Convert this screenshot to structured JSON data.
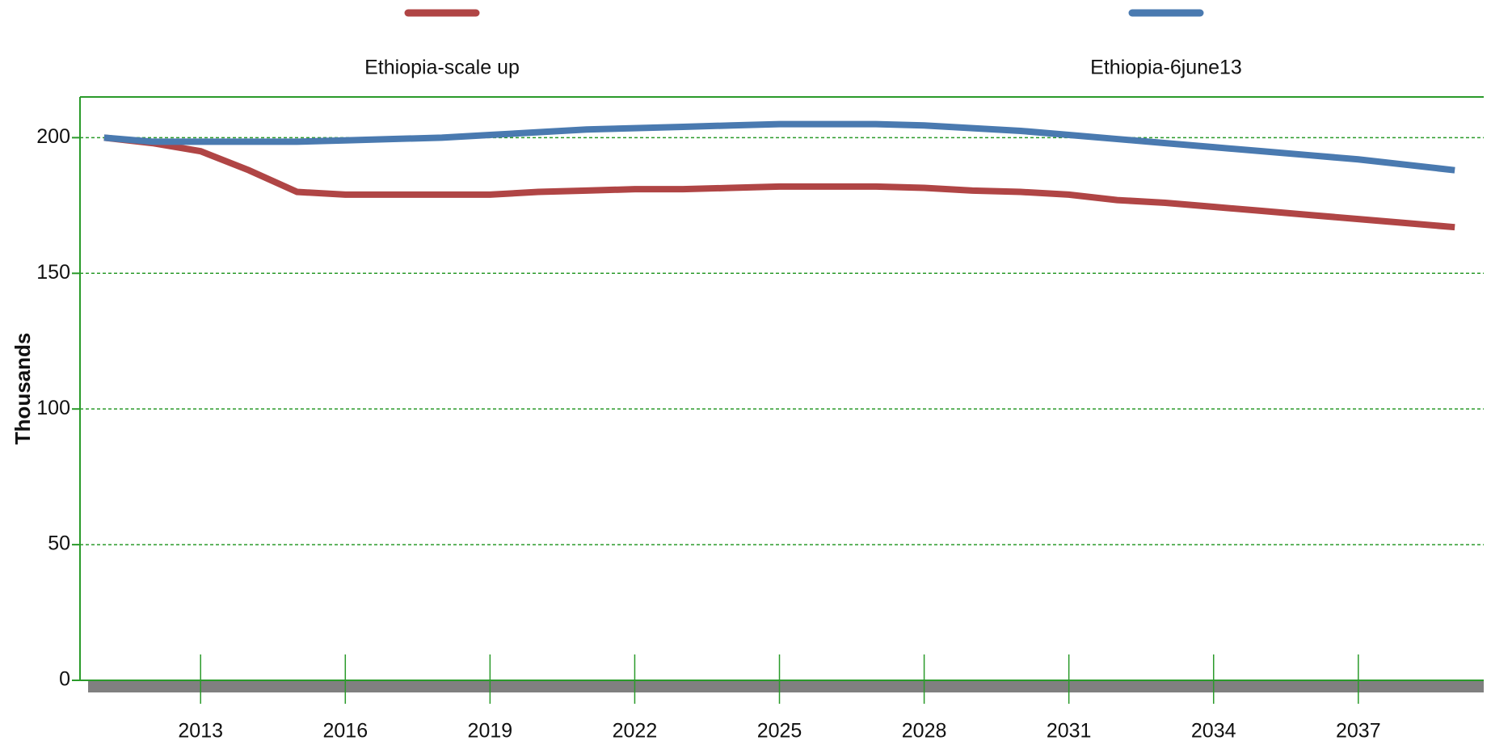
{
  "chart_data": {
    "type": "line",
    "y_label": "Thousands",
    "x": [
      2011,
      2012,
      2013,
      2014,
      2015,
      2016,
      2017,
      2018,
      2019,
      2020,
      2021,
      2022,
      2023,
      2024,
      2025,
      2026,
      2027,
      2028,
      2029,
      2030,
      2031,
      2032,
      2033,
      2034,
      2035,
      2036,
      2037,
      2038,
      2039
    ],
    "series": [
      {
        "name": "Ethiopia-scale up",
        "color": "#b04545",
        "values": [
          200,
          198,
          195,
          188,
          180,
          179,
          179,
          179,
          179,
          180,
          180.5,
          181,
          181,
          181.5,
          182,
          182,
          182,
          181.5,
          180.5,
          180,
          179,
          177,
          176,
          174.5,
          173,
          171.5,
          170,
          168.5,
          167
        ]
      },
      {
        "name": "Ethiopia-6june13",
        "color": "#4a7ab0",
        "values": [
          200,
          198.5,
          198.5,
          198.5,
          198.5,
          199,
          199.5,
          200,
          201,
          202,
          203,
          203.5,
          204,
          204.5,
          205,
          205,
          205,
          204.5,
          203.5,
          202.5,
          201,
          199.5,
          198,
          196.5,
          195,
          193.5,
          192,
          190,
          188
        ]
      }
    ],
    "xlim": [
      2010.5,
      2039.6
    ],
    "xticks": [
      2013,
      2016,
      2019,
      2022,
      2025,
      2028,
      2031,
      2034,
      2037
    ],
    "ylim": [
      0,
      215
    ],
    "yticks": [
      0,
      50,
      100,
      150,
      200
    ],
    "grid": true
  }
}
